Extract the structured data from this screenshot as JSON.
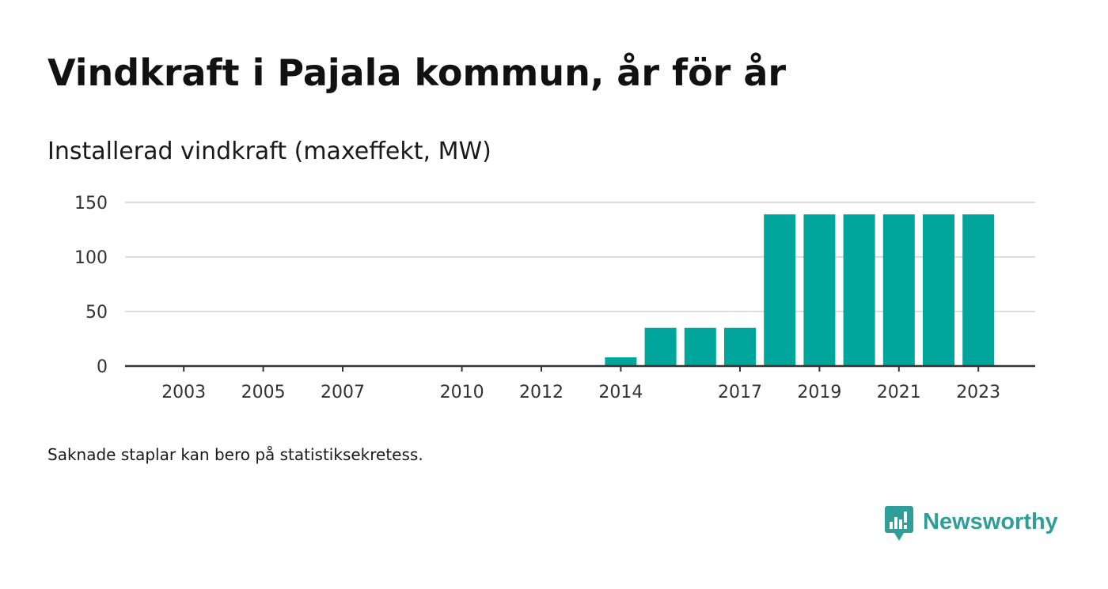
{
  "title": "Vindkraft i Pajala kommun, år för år",
  "subtitle": "Installerad vindkraft (maxeffekt, MW)",
  "footnote": "Saknade staplar kan bero på statistiksekretess.",
  "brand": {
    "name": "Newsworthy",
    "icon": "newsworthy-logo-icon",
    "color": "#2f9e98"
  },
  "chart_data": {
    "type": "bar",
    "title": "Installerad vindkraft (maxeffekt, MW)",
    "xlabel": "",
    "ylabel": "",
    "x": [
      2002,
      2003,
      2004,
      2005,
      2006,
      2007,
      2008,
      2009,
      2010,
      2011,
      2012,
      2013,
      2014,
      2015,
      2016,
      2017,
      2018,
      2019,
      2020,
      2021,
      2022,
      2023
    ],
    "values": [
      null,
      null,
      null,
      null,
      null,
      null,
      null,
      null,
      null,
      null,
      null,
      null,
      8,
      35,
      35,
      35,
      139,
      139,
      139,
      139,
      139,
      139
    ],
    "x_tick_labels": [
      "2003",
      "2005",
      "2007",
      "2010",
      "2012",
      "2014",
      "2017",
      "2019",
      "2021",
      "2023"
    ],
    "y_ticks": [
      0,
      50,
      100,
      150
    ],
    "ylim": [
      0,
      150
    ],
    "grid": true,
    "legend": "none",
    "bar_color": "#00a59b",
    "grid_color": "#dddddd",
    "axis_color": "#333333"
  }
}
